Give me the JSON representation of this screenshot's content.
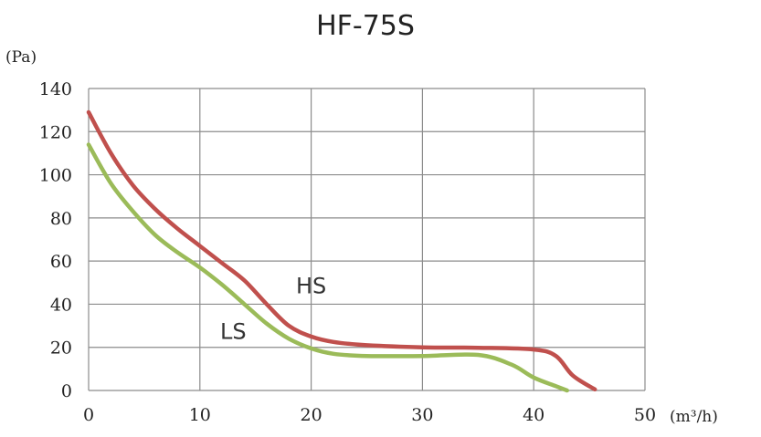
{
  "chart_data": {
    "type": "line",
    "title": "HF-75S",
    "ylabel": "(Pa)",
    "xlabel": "(m³/h)",
    "xlim": [
      0,
      50
    ],
    "ylim": [
      0,
      140
    ],
    "xticks": [
      0,
      10,
      20,
      30,
      40,
      50
    ],
    "yticks": [
      0,
      20,
      40,
      60,
      80,
      100,
      120,
      140
    ],
    "grid": true,
    "series": [
      {
        "name": "HS",
        "color": "#c0504d",
        "x": [
          0,
          2,
          4,
          6,
          8,
          10,
          12,
          14,
          16,
          18,
          20,
          22,
          25,
          30,
          35,
          40,
          42,
          43.5,
          45.5
        ],
        "y": [
          129,
          110,
          95,
          84,
          75,
          67,
          59,
          51,
          40,
          30,
          25,
          22.5,
          21,
          20,
          19.8,
          19,
          16,
          7,
          0.5
        ]
      },
      {
        "name": "LS",
        "color": "#9bbb59",
        "x": [
          0,
          2,
          4,
          6,
          8,
          10,
          12,
          14,
          16,
          18,
          20,
          22,
          25,
          30,
          35,
          38,
          40,
          42,
          43
        ],
        "y": [
          114,
          96,
          83,
          72,
          64,
          57,
          49,
          40,
          31,
          24,
          19.5,
          17,
          16,
          16,
          16.5,
          12,
          6,
          2,
          0
        ]
      }
    ]
  }
}
